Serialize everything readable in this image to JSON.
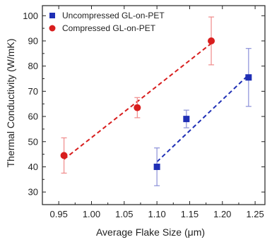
{
  "chart_data": {
    "type": "scatter",
    "xlabel": "Average Flake Size (μm)",
    "ylabel": "Thermal Conductivity (W/mK)",
    "xlim": [
      0.925,
      1.265
    ],
    "ylim": [
      25,
      104
    ],
    "xticks": [
      0.95,
      1.0,
      1.05,
      1.1,
      1.15,
      1.2,
      1.25
    ],
    "xtick_labels": [
      "0.95",
      "1.00",
      "1.05",
      "1.10",
      "1.15",
      "1.20",
      "1.25"
    ],
    "yticks": [
      30,
      40,
      50,
      60,
      70,
      80,
      90,
      100
    ],
    "ytick_labels": [
      "30",
      "40",
      "50",
      "60",
      "70",
      "80",
      "90",
      "100"
    ],
    "grid": false,
    "legend_position": "top-left",
    "series": [
      {
        "name": "Uncompressed GL-on-PET",
        "color": "#1f2fb5",
        "marker": "square",
        "x": [
          1.1,
          1.145,
          1.24
        ],
        "y": [
          40,
          59,
          75.5
        ],
        "yerr": [
          7.5,
          3.5,
          11.5
        ],
        "fit_line": {
          "x": [
            1.1,
            1.24
          ],
          "y": [
            42,
            76.5
          ]
        }
      },
      {
        "name": "Compressed GL-on-PET",
        "color": "#d81e1e",
        "marker": "circle",
        "x": [
          0.958,
          1.07,
          1.183
        ],
        "y": [
          44.5,
          63.5,
          90
        ],
        "yerr": [
          7,
          4,
          9.5
        ],
        "fit_line": {
          "x": [
            0.958,
            1.183
          ],
          "y": [
            43,
            89
          ]
        }
      }
    ]
  }
}
